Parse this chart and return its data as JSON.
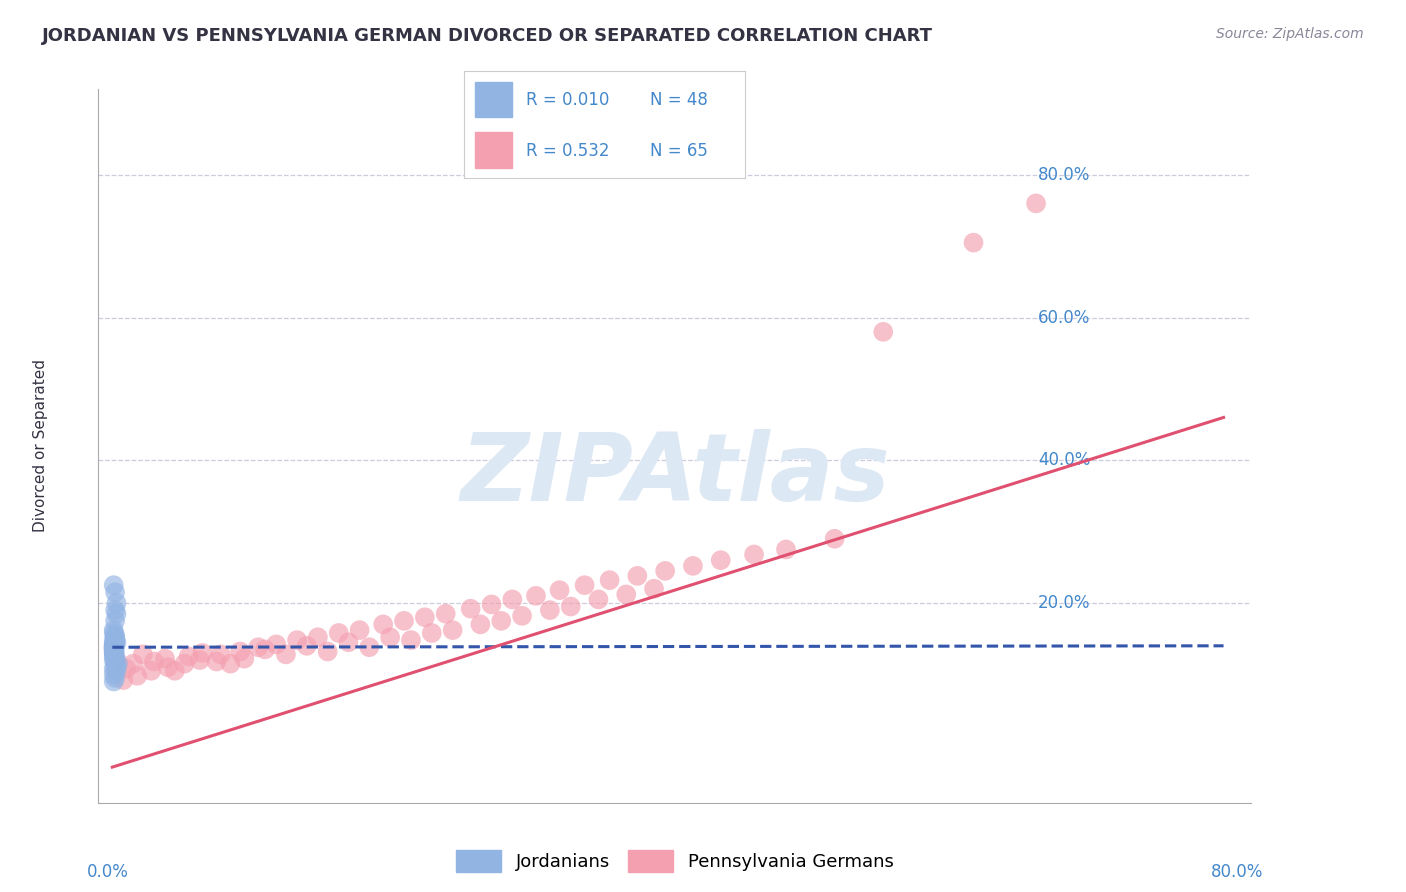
{
  "title": "JORDANIAN VS PENNSYLVANIA GERMAN DIVORCED OR SEPARATED CORRELATION CHART",
  "source": "Source: ZipAtlas.com",
  "ylabel": "Divorced or Separated",
  "y_tick_labels": [
    "20.0%",
    "40.0%",
    "60.0%",
    "80.0%"
  ],
  "y_tick_values": [
    0.2,
    0.4,
    0.6,
    0.8
  ],
  "x_range": [
    0.0,
    0.8
  ],
  "y_range": [
    -0.08,
    0.92
  ],
  "legend_r1": "R = 0.010",
  "legend_n1": "N = 48",
  "legend_r2": "R = 0.532",
  "legend_n2": "N = 65",
  "blue_color": "#92b4e3",
  "pink_color": "#f4a0b0",
  "blue_line_color": "#3355aa",
  "pink_line_color": "#e05070",
  "grid_color": "#ccccdd",
  "axis_label_color": "#4488cc",
  "title_color": "#333344",
  "source_color": "#888899",
  "watermark_color": "#dde8f5",
  "background_color": "#ffffff",
  "jord_x": [
    0.001,
    0.001,
    0.002,
    0.001,
    0.002,
    0.001,
    0.001,
    0.002,
    0.001,
    0.001,
    0.002,
    0.001,
    0.001,
    0.002,
    0.001,
    0.001,
    0.001,
    0.002,
    0.001,
    0.001,
    0.003,
    0.002,
    0.001,
    0.002,
    0.003,
    0.002,
    0.001,
    0.002,
    0.001,
    0.002,
    0.004,
    0.003,
    0.002,
    0.001,
    0.002,
    0.001,
    0.003,
    0.001,
    0.002,
    0.001,
    0.001,
    0.002,
    0.001,
    0.002,
    0.001,
    0.003,
    0.002,
    0.001
  ],
  "jord_y": [
    0.14,
    0.138,
    0.145,
    0.132,
    0.137,
    0.141,
    0.136,
    0.143,
    0.139,
    0.135,
    0.142,
    0.13,
    0.138,
    0.145,
    0.133,
    0.14,
    0.136,
    0.142,
    0.137,
    0.135,
    0.2,
    0.215,
    0.225,
    0.19,
    0.185,
    0.175,
    0.13,
    0.128,
    0.125,
    0.122,
    0.115,
    0.11,
    0.112,
    0.108,
    0.095,
    0.09,
    0.105,
    0.1,
    0.118,
    0.12,
    0.148,
    0.152,
    0.158,
    0.155,
    0.162,
    0.145,
    0.15,
    0.143
  ],
  "pa_x": [
    0.003,
    0.01,
    0.015,
    0.022,
    0.03,
    0.038,
    0.045,
    0.055,
    0.065,
    0.075,
    0.085,
    0.095,
    0.11,
    0.125,
    0.14,
    0.155,
    0.17,
    0.185,
    0.2,
    0.215,
    0.23,
    0.245,
    0.265,
    0.28,
    0.295,
    0.315,
    0.33,
    0.35,
    0.37,
    0.39,
    0.008,
    0.018,
    0.028,
    0.04,
    0.052,
    0.063,
    0.078,
    0.092,
    0.105,
    0.118,
    0.133,
    0.148,
    0.163,
    0.178,
    0.195,
    0.21,
    0.225,
    0.24,
    0.258,
    0.273,
    0.288,
    0.305,
    0.322,
    0.34,
    0.358,
    0.378,
    0.398,
    0.418,
    0.438,
    0.462,
    0.485,
    0.52,
    0.555,
    0.62,
    0.665
  ],
  "pa_y": [
    0.12,
    0.108,
    0.115,
    0.128,
    0.118,
    0.122,
    0.105,
    0.125,
    0.13,
    0.118,
    0.115,
    0.122,
    0.135,
    0.128,
    0.14,
    0.132,
    0.145,
    0.138,
    0.152,
    0.148,
    0.158,
    0.162,
    0.17,
    0.175,
    0.182,
    0.19,
    0.195,
    0.205,
    0.212,
    0.22,
    0.092,
    0.098,
    0.105,
    0.11,
    0.115,
    0.12,
    0.128,
    0.132,
    0.138,
    0.142,
    0.148,
    0.152,
    0.158,
    0.162,
    0.17,
    0.175,
    0.18,
    0.185,
    0.192,
    0.198,
    0.205,
    0.21,
    0.218,
    0.225,
    0.232,
    0.238,
    0.245,
    0.252,
    0.26,
    0.268,
    0.275,
    0.29,
    0.58,
    0.705,
    0.76
  ],
  "blue_line_x": [
    0.0,
    0.8
  ],
  "blue_line_y": [
    0.138,
    0.14
  ],
  "pink_line_x": [
    0.0,
    0.8
  ],
  "pink_line_y": [
    -0.03,
    0.46
  ]
}
